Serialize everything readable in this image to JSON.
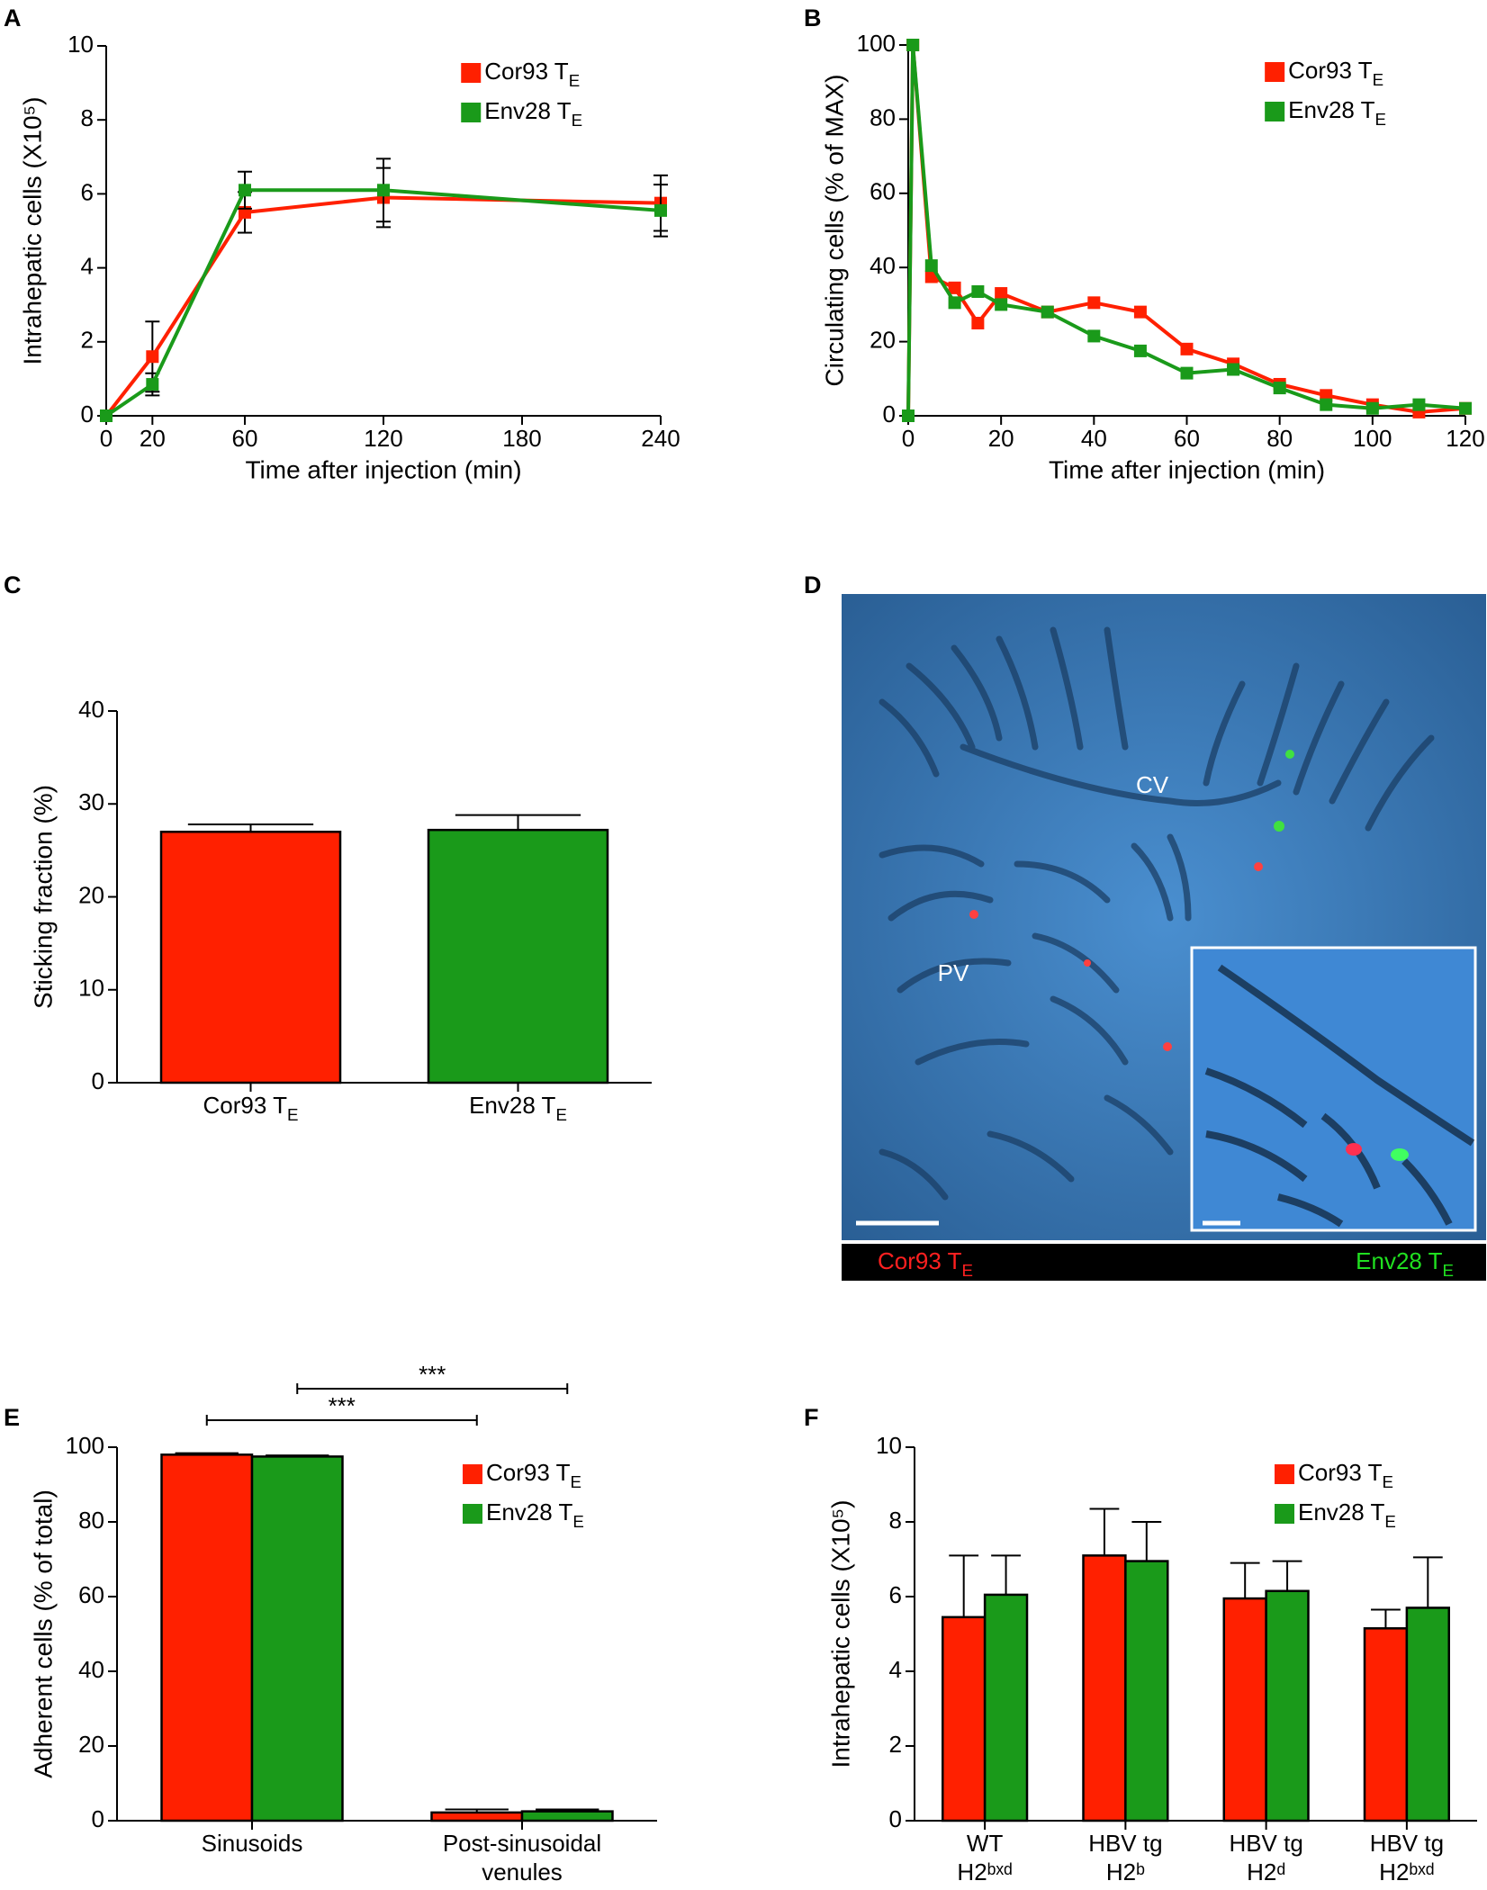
{
  "chart_data": [
    {
      "type": "line",
      "panel": "A",
      "xlabel": "Time after injection (min)",
      "ylabel": "Intrahepatic cells (X10⁵)",
      "x": [
        0,
        20,
        60,
        120,
        240
      ],
      "xlim": [
        0,
        240
      ],
      "xticks": [
        0,
        20,
        60,
        120,
        180,
        240
      ],
      "ylim": [
        0,
        10
      ],
      "yticks": [
        0,
        2,
        4,
        6,
        8,
        10
      ],
      "legend": "upper right",
      "series": [
        {
          "name": "Cor93 TE",
          "color": "#ff2000",
          "values": [
            0,
            1.6,
            5.5,
            5.9,
            5.75
          ],
          "errors": [
            0,
            0.95,
            0.55,
            0.8,
            0.75
          ]
        },
        {
          "name": "Env28 TE",
          "color": "#1a9a1a",
          "values": [
            0,
            0.85,
            6.1,
            6.1,
            5.55
          ],
          "errors": [
            0,
            0.3,
            0.5,
            0.85,
            0.7
          ]
        }
      ]
    },
    {
      "type": "line",
      "panel": "B",
      "xlabel": "Time after injection (min)",
      "ylabel": "Circulating cells (% of MAX)",
      "x": [
        0,
        1,
        5,
        10,
        15,
        20,
        30,
        40,
        50,
        60,
        70,
        80,
        90,
        100,
        110,
        120
      ],
      "xlim": [
        0,
        120
      ],
      "xticks": [
        0,
        20,
        40,
        60,
        80,
        100,
        120
      ],
      "ylim": [
        0,
        100
      ],
      "yticks": [
        0,
        20,
        40,
        60,
        80,
        100
      ],
      "legend": "upper right",
      "series": [
        {
          "name": "Cor93 TE",
          "color": "#ff2000",
          "values": [
            0,
            100,
            37.5,
            34.5,
            25,
            33,
            28,
            30.5,
            28,
            18,
            14,
            8.5,
            5.5,
            3,
            1,
            2
          ]
        },
        {
          "name": "Env28 TE",
          "color": "#1a9a1a",
          "values": [
            0,
            100,
            40.5,
            30.5,
            33.5,
            30,
            28,
            21.5,
            17.5,
            11.5,
            12.5,
            7.5,
            3,
            2,
            3,
            2
          ]
        }
      ]
    },
    {
      "type": "bar",
      "panel": "C",
      "ylabel": "Sticking fraction (%)",
      "categories": [
        "Cor93 TE",
        "Env28 TE"
      ],
      "ylim": [
        0,
        40
      ],
      "yticks": [
        0,
        10,
        20,
        30,
        40
      ],
      "series": [
        {
          "colors": [
            "#ff2000",
            "#1a9a1a"
          ],
          "values": [
            27,
            27.2
          ],
          "errors": [
            0.8,
            1.6
          ]
        }
      ]
    },
    {
      "type": "image",
      "panel": "D",
      "labels": [
        "CV",
        "PV"
      ],
      "legend": [
        {
          "name": "Cor93 TE",
          "color": "#ff2020"
        },
        {
          "name": "Env28 TE",
          "color": "#20e020"
        }
      ]
    },
    {
      "type": "bar",
      "panel": "E",
      "ylabel": "Adherent cells (% of total)",
      "categories": [
        [
          "Sinusoids"
        ],
        [
          "Post-sinusoidal",
          "venules"
        ]
      ],
      "ylim": [
        0,
        100
      ],
      "yticks": [
        0,
        20,
        40,
        60,
        80,
        100
      ],
      "legend": "upper right",
      "annotations": [
        "***",
        "***"
      ],
      "series": [
        {
          "name": "Cor93 TE",
          "color": "#ff2000",
          "values": [
            98,
            2.2
          ],
          "errors": [
            0.4,
            0.8
          ]
        },
        {
          "name": "Env28 TE",
          "color": "#1a9a1a",
          "values": [
            97.5,
            2.5
          ],
          "errors": [
            0.3,
            0.5
          ]
        }
      ]
    },
    {
      "type": "bar",
      "panel": "F",
      "ylabel": "Intrahepatic cells (X10⁵)",
      "categories": [
        [
          "WT",
          "H2ᵇˣᵈ"
        ],
        [
          "HBV tg",
          "H2ᵇ"
        ],
        [
          "HBV tg",
          "H2ᵈ"
        ],
        [
          "HBV tg",
          "H2ᵇˣᵈ"
        ]
      ],
      "ylim": [
        0,
        10
      ],
      "yticks": [
        0,
        2,
        4,
        6,
        8,
        10
      ],
      "legend": "upper right",
      "series": [
        {
          "name": "Cor93 TE",
          "color": "#ff2000",
          "values": [
            5.45,
            7.1,
            5.95,
            5.15
          ],
          "errors": [
            1.65,
            1.25,
            0.95,
            0.5
          ]
        },
        {
          "name": "Env28 TE",
          "color": "#1a9a1a",
          "values": [
            6.05,
            6.95,
            6.15,
            5.7
          ],
          "errors": [
            1.05,
            1.05,
            0.8,
            1.35
          ]
        }
      ]
    }
  ]
}
